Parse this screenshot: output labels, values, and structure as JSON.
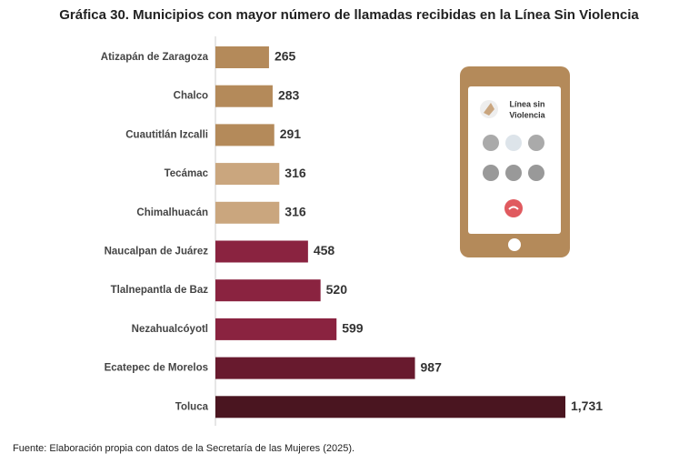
{
  "chart_data": {
    "type": "bar",
    "orientation": "horizontal",
    "title": "Gráfica 30. Municipios con mayor número de llamadas recibidas en la Línea Sin Violencia",
    "categories": [
      "Atizapán de Zaragoza",
      "Chalco",
      "Cuautitlán Izcalli",
      "Tecámac",
      "Chimalhuacán",
      "Naucalpan de Juárez",
      "Tlalnepantla de Baz",
      "Nezahualcóyotl",
      "Ecatepec de Morelos",
      "Toluca"
    ],
    "values": [
      265,
      283,
      291,
      316,
      316,
      458,
      520,
      599,
      987,
      1731
    ],
    "value_labels": [
      "265",
      "283",
      "291",
      "316",
      "316",
      "458",
      "520",
      "599",
      "987",
      "1,731"
    ],
    "colors": [
      "#b48a5a",
      "#b48a5a",
      "#b48a5a",
      "#caa67e",
      "#caa67e",
      "#8a2340",
      "#8a2340",
      "#8a2340",
      "#681a2e",
      "#4a1520"
    ],
    "source": "Fuente: Elaboración propia con datos de la Secretaría de las Mujeres (2025).",
    "illustration": {
      "label_line1": "Línea sin",
      "label_line2": "Violencia"
    }
  }
}
